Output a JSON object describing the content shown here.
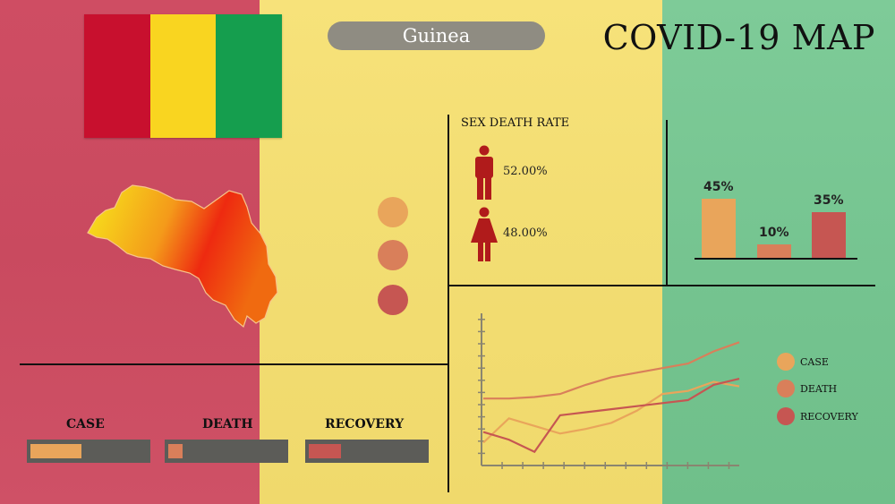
{
  "header": {
    "country": "Guinea",
    "title": "COVID-19 MAP"
  },
  "flag_colors": [
    "#c8102e",
    "#f9d520",
    "#159e4e"
  ],
  "palette": {
    "case": "#e9a55b",
    "death": "#d97f5a",
    "recovery": "#c65652"
  },
  "sex_death_rate": {
    "title": "SEX DEATH RATE",
    "male": {
      "icon": "male-figure-icon",
      "value": "52.00%"
    },
    "female": {
      "icon": "female-figure-icon",
      "value": "48.00%"
    }
  },
  "bar_summary": [
    {
      "label": "45%",
      "value": 45,
      "color": "#e9a55b"
    },
    {
      "label": "10%",
      "value": 10,
      "color": "#d97f5a"
    },
    {
      "label": "35%",
      "value": 35,
      "color": "#c65652"
    }
  ],
  "categories": [
    {
      "label": "CASE",
      "fill": 0.44,
      "color": "#e9a55b"
    },
    {
      "label": "DEATH",
      "fill": 0.12,
      "color": "#d97f5a"
    },
    {
      "label": "RECOVERY",
      "fill": 0.28,
      "color": "#c65652"
    }
  ],
  "legend": [
    {
      "label": "CASE",
      "color": "#e9a55b"
    },
    {
      "label": "DEATH",
      "color": "#d97f5a"
    },
    {
      "label": "RECOVERY",
      "color": "#c65652"
    }
  ],
  "chart_data": {
    "type": "line",
    "x": [
      0,
      1,
      2,
      3,
      4,
      5,
      6,
      7,
      8,
      9,
      10
    ],
    "ylim": [
      0,
      100
    ],
    "series": [
      {
        "name": "CASE",
        "color": "#e9a55b",
        "values": [
          15,
          31,
          26,
          21,
          24,
          28,
          36,
          47,
          49,
          55,
          52
        ]
      },
      {
        "name": "DEATH",
        "color": "#d97f5a",
        "values": [
          44,
          44,
          45,
          47,
          53,
          58,
          61,
          64,
          67,
          75,
          81
        ]
      },
      {
        "name": "RECOVERY",
        "color": "#c65652",
        "values": [
          22,
          17,
          9,
          33,
          35,
          37,
          39,
          41,
          43,
          53,
          57
        ]
      }
    ]
  }
}
